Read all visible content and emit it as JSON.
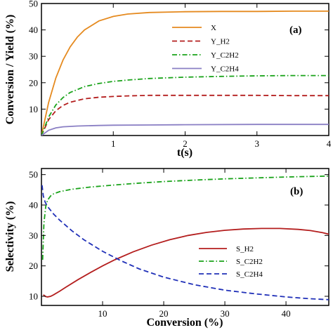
{
  "chart_data": [
    {
      "type": "line",
      "panel_label": "(a)",
      "xlabel": "t(s)",
      "ylabel": "Conversion / Yield  (%)",
      "xlim": [
        0,
        4
      ],
      "ylim": [
        0,
        50
      ],
      "xticks": [
        1,
        2,
        3,
        4
      ],
      "yticks": [
        10,
        20,
        30,
        40,
        50
      ],
      "legend": "top-right",
      "grid": false,
      "series": [
        {
          "name": "X",
          "color": "#e58a1f",
          "style": "solid",
          "x": [
            0,
            0.1,
            0.2,
            0.3,
            0.4,
            0.5,
            0.6,
            0.8,
            1.0,
            1.2,
            1.5,
            2.0,
            2.5,
            3.0,
            3.5,
            4.0
          ],
          "values": [
            0,
            12.5,
            21.8,
            28.6,
            33.6,
            37.3,
            40.0,
            43.4,
            45.1,
            46.0,
            46.6,
            46.9,
            47.0,
            47.0,
            47.1,
            47.1
          ]
        },
        {
          "name": "Y_H2",
          "color": "#b41e1e",
          "style": "dash",
          "x": [
            0,
            0.1,
            0.2,
            0.3,
            0.4,
            0.6,
            0.8,
            1.0,
            1.2,
            1.5,
            2.0,
            2.5,
            3.0,
            3.5,
            4.0
          ],
          "values": [
            0,
            6.0,
            9.4,
            11.4,
            12.6,
            13.9,
            14.5,
            14.8,
            15.0,
            15.2,
            15.2,
            15.2,
            15.2,
            15.1,
            15.1
          ]
        },
        {
          "name": "Y_C2H2",
          "color": "#1aa31a",
          "style": "dashdot",
          "x": [
            0,
            0.1,
            0.2,
            0.3,
            0.4,
            0.6,
            0.8,
            1.0,
            1.2,
            1.5,
            2.0,
            2.5,
            3.0,
            3.5,
            4.0
          ],
          "values": [
            0,
            7.0,
            11.6,
            14.4,
            16.3,
            18.5,
            19.7,
            20.5,
            21.0,
            21.6,
            22.1,
            22.4,
            22.6,
            22.7,
            22.7
          ]
        },
        {
          "name": "Y_C2H4",
          "color": "#8a7fc4",
          "style": "solid",
          "x": [
            0,
            0.1,
            0.2,
            0.3,
            0.5,
            0.8,
            1.0,
            1.5,
            2.0,
            3.0,
            4.0
          ],
          "values": [
            0,
            2.0,
            2.9,
            3.3,
            3.6,
            3.8,
            3.9,
            4.0,
            4.1,
            4.2,
            4.2
          ]
        }
      ]
    },
    {
      "type": "line",
      "panel_label": "(b)",
      "xlabel": "Conversion (%)",
      "ylabel": "Selectivity  (%)",
      "xlim": [
        0,
        47
      ],
      "ylim": [
        7,
        52
      ],
      "xticks": [
        10,
        20,
        30,
        40
      ],
      "yticks": [
        10,
        20,
        30,
        40,
        50
      ],
      "legend": "bottom-right",
      "grid": false,
      "series": [
        {
          "name": "S_H2",
          "color": "#b41e1e",
          "style": "solid",
          "x": [
            0.3,
            0.7,
            1.0,
            1.5,
            2.0,
            3.0,
            4.0,
            6.0,
            8.0,
            10.0,
            12.0,
            15.0,
            18.0,
            21.0,
            24.0,
            27.0,
            30.0,
            33.0,
            36.0,
            39.0,
            42.0,
            44.0,
            46.0,
            47.0
          ],
          "values": [
            10.5,
            9.9,
            9.8,
            10.0,
            10.5,
            11.7,
            13.0,
            15.5,
            17.8,
            20.0,
            22.0,
            24.6,
            26.8,
            28.6,
            30.0,
            31.0,
            31.7,
            32.1,
            32.3,
            32.3,
            32.0,
            31.6,
            30.9,
            30.4
          ]
        },
        {
          "name": "S_C2H2",
          "color": "#1aa31a",
          "style": "dashdot",
          "x": [
            0.2,
            0.4,
            0.7,
            1.0,
            1.5,
            2.0,
            3.0,
            5.0,
            8.0,
            12.0,
            16.0,
            20.0,
            25.0,
            30.0,
            35.0,
            40.0,
            44.0,
            47.0
          ],
          "values": [
            22.0,
            34.0,
            39.5,
            41.6,
            43.0,
            43.7,
            44.4,
            45.2,
            45.9,
            46.6,
            47.2,
            47.7,
            48.2,
            48.6,
            48.9,
            49.2,
            49.4,
            49.5
          ]
        },
        {
          "name": "S_C2H4",
          "color": "#2030b8",
          "style": "dash",
          "x": [
            0.1,
            0.3,
            0.6,
            1.0,
            2.0,
            3.0,
            5.0,
            7.0,
            10.0,
            13.0,
            16.0,
            20.0,
            25.0,
            30.0,
            35.0,
            40.0,
            44.0,
            47.0
          ],
          "values": [
            46.5,
            43.0,
            41.0,
            39.5,
            37.0,
            35.0,
            31.5,
            28.5,
            24.8,
            21.7,
            19.0,
            16.3,
            13.8,
            12.0,
            10.8,
            9.8,
            9.2,
            8.9
          ]
        }
      ]
    }
  ]
}
